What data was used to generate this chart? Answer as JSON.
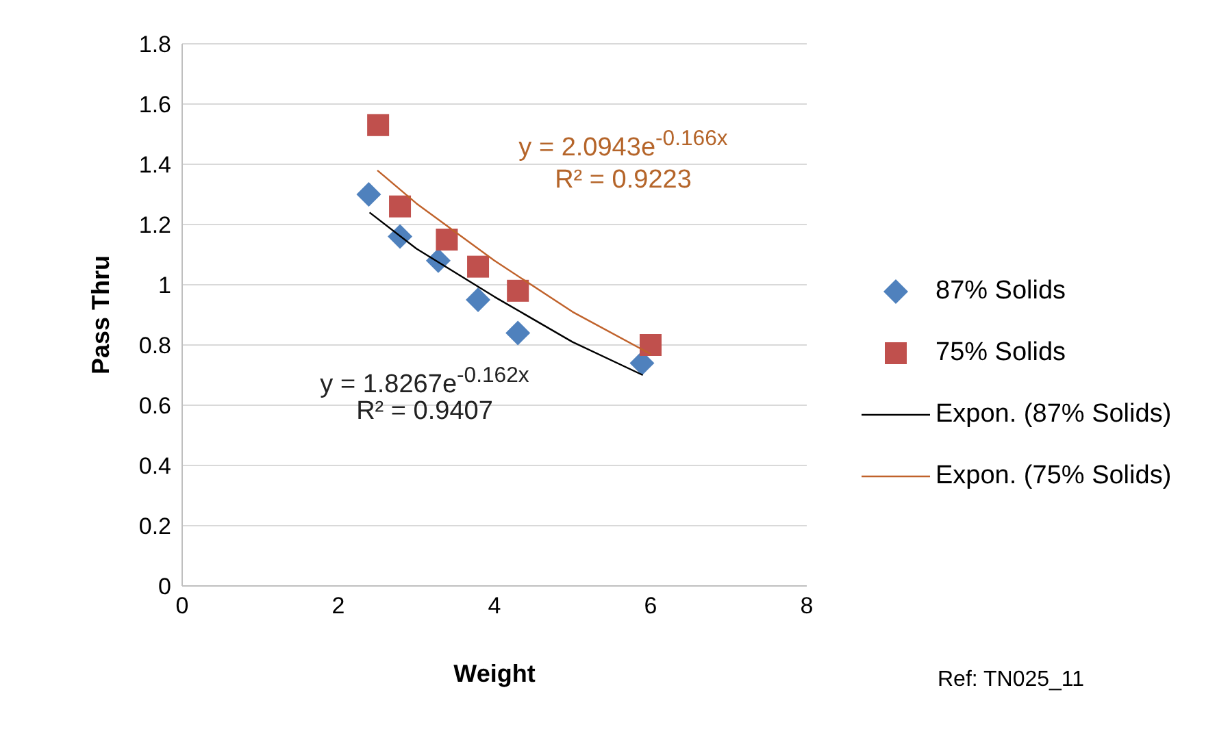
{
  "chart_data": {
    "type": "scatter",
    "xlabel": "Weight",
    "ylabel": "Pass Thru",
    "xlim": [
      0,
      8
    ],
    "xticks": [
      0,
      2,
      4,
      6,
      8
    ],
    "ylim": [
      0,
      1.8
    ],
    "yticks": [
      0,
      0.2,
      0.4,
      0.6,
      0.8,
      1,
      1.2,
      1.4,
      1.6,
      1.8
    ],
    "grid": "y",
    "legend": "right",
    "series": [
      {
        "name": "87% Solids",
        "marker": "diamond",
        "color": "#4f81bd",
        "x": [
          2.39,
          2.79,
          3.28,
          3.79,
          4.3,
          5.89
        ],
        "values": [
          1.3,
          1.16,
          1.08,
          0.95,
          0.84,
          0.74
        ]
      },
      {
        "name": "75% Solids",
        "marker": "square",
        "color": "#c0504d",
        "x": [
          2.51,
          2.79,
          3.39,
          3.79,
          4.3,
          6.0
        ],
        "values": [
          1.53,
          1.26,
          1.15,
          1.06,
          0.98,
          0.8
        ]
      },
      {
        "name": "Expon. (87% Solids)",
        "type": "line",
        "marker": "none",
        "color": "#000000",
        "x": [
          2.4,
          3,
          4,
          5,
          5.9
        ],
        "values": [
          1.24,
          1.12,
          0.96,
          0.81,
          0.7
        ]
      },
      {
        "name": "Expon. (75% Solids)",
        "type": "line",
        "marker": "none",
        "color": "#c0622b",
        "x": [
          2.5,
          3,
          4,
          5,
          6
        ],
        "values": [
          1.38,
          1.27,
          1.08,
          0.91,
          0.77
        ]
      }
    ],
    "annotations": [
      "y = 1.8267e$^{-0.162x}$",
      "R² = 0.9407",
      "y = 2.0943e$^{-0.166x}$",
      "R² = 0.9223",
      "Ref: TN025_11"
    ]
  }
}
